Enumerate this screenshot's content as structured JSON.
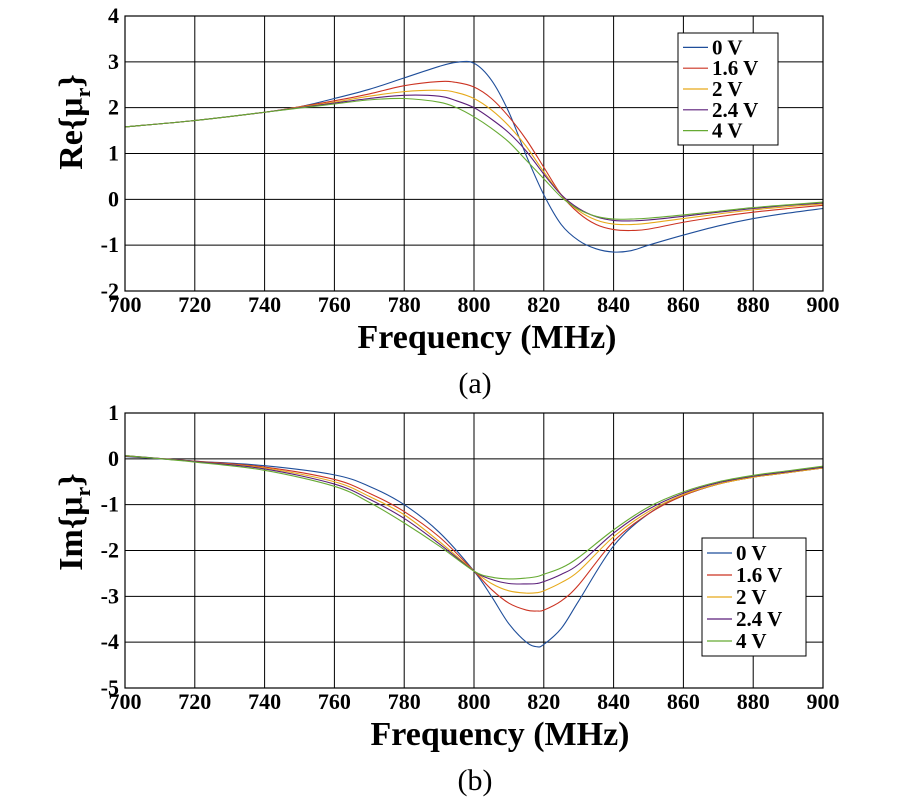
{
  "chart_data": [
    {
      "type": "line",
      "id": "a",
      "caption": "(a)",
      "xlabel": "Frequency (MHz)",
      "ylabel_main": "Re{μ",
      "ylabel_sub": "r",
      "ylabel_close": "}",
      "xlim": [
        700,
        900
      ],
      "ylim": [
        -2,
        4
      ],
      "xticks": [
        700,
        720,
        740,
        760,
        780,
        800,
        820,
        840,
        860,
        880,
        900
      ],
      "yticks": [
        -2,
        -1,
        0,
        1,
        2,
        3,
        4
      ],
      "grid": true,
      "legend_position": "top-right",
      "x": [
        700,
        720,
        740,
        750,
        760,
        770,
        780,
        790,
        795,
        800,
        805,
        810,
        815,
        820,
        825,
        830,
        835,
        840,
        845,
        850,
        860,
        870,
        880,
        890,
        900
      ],
      "series": [
        {
          "name": "0 V",
          "color": "#1f4e9a",
          "values": [
            1.58,
            1.72,
            1.9,
            2.02,
            2.2,
            2.4,
            2.65,
            2.9,
            2.99,
            2.97,
            2.6,
            1.9,
            0.95,
            0.1,
            -0.55,
            -0.9,
            -1.08,
            -1.15,
            -1.12,
            -1.0,
            -0.78,
            -0.58,
            -0.42,
            -0.3,
            -0.2
          ]
        },
        {
          "name": "1.6 V",
          "color": "#cc3322",
          "values": [
            1.58,
            1.72,
            1.9,
            2.02,
            2.15,
            2.3,
            2.48,
            2.57,
            2.55,
            2.45,
            2.2,
            1.8,
            1.3,
            0.7,
            0.1,
            -0.3,
            -0.55,
            -0.66,
            -0.68,
            -0.65,
            -0.5,
            -0.38,
            -0.28,
            -0.2,
            -0.13
          ]
        },
        {
          "name": "2 V",
          "color": "#e6a91a",
          "values": [
            1.58,
            1.72,
            1.9,
            2.01,
            2.12,
            2.25,
            2.35,
            2.38,
            2.33,
            2.2,
            1.95,
            1.6,
            1.15,
            0.6,
            0.1,
            -0.25,
            -0.45,
            -0.54,
            -0.55,
            -0.52,
            -0.42,
            -0.32,
            -0.23,
            -0.16,
            -0.1
          ]
        },
        {
          "name": "2.4 V",
          "color": "#5b1f7a",
          "values": [
            1.58,
            1.72,
            1.9,
            2.0,
            2.1,
            2.2,
            2.27,
            2.25,
            2.15,
            2.0,
            1.75,
            1.45,
            1.05,
            0.55,
            0.1,
            -0.2,
            -0.38,
            -0.46,
            -0.47,
            -0.45,
            -0.37,
            -0.28,
            -0.2,
            -0.13,
            -0.08
          ]
        },
        {
          "name": "4 V",
          "color": "#66aa33",
          "values": [
            1.58,
            1.72,
            1.9,
            1.99,
            2.08,
            2.17,
            2.2,
            2.12,
            2.0,
            1.8,
            1.55,
            1.25,
            0.85,
            0.45,
            0.05,
            -0.22,
            -0.37,
            -0.43,
            -0.43,
            -0.41,
            -0.34,
            -0.26,
            -0.18,
            -0.12,
            -0.06
          ]
        }
      ]
    },
    {
      "type": "line",
      "id": "b",
      "caption": "(b)",
      "xlabel": "Frequency (MHz)",
      "ylabel_main": "Im{μ",
      "ylabel_sub": "r",
      "ylabel_close": "}",
      "xlim": [
        700,
        900
      ],
      "ylim": [
        -5,
        1
      ],
      "xticks": [
        700,
        720,
        740,
        760,
        780,
        800,
        820,
        840,
        860,
        880,
        900
      ],
      "yticks": [
        -5,
        -4,
        -3,
        -2,
        -1,
        0,
        1
      ],
      "grid": true,
      "legend_position": "lower-right",
      "x": [
        700,
        720,
        740,
        760,
        770,
        780,
        790,
        800,
        805,
        810,
        815,
        818,
        820,
        825,
        830,
        840,
        850,
        860,
        870,
        880,
        890,
        900
      ],
      "series": [
        {
          "name": "0 V",
          "color": "#1f4e9a",
          "values": [
            0.05,
            -0.05,
            -0.15,
            -0.35,
            -0.6,
            -1.0,
            -1.6,
            -2.45,
            -3.0,
            -3.6,
            -4.0,
            -4.1,
            -4.05,
            -3.7,
            -3.1,
            -1.9,
            -1.2,
            -0.8,
            -0.55,
            -0.4,
            -0.3,
            -0.2
          ]
        },
        {
          "name": "1.6 V",
          "color": "#cc3322",
          "values": [
            0.06,
            -0.05,
            -0.18,
            -0.45,
            -0.75,
            -1.15,
            -1.7,
            -2.45,
            -2.85,
            -3.15,
            -3.3,
            -3.32,
            -3.3,
            -3.1,
            -2.75,
            -1.8,
            -1.2,
            -0.8,
            -0.55,
            -0.4,
            -0.3,
            -0.2
          ]
        },
        {
          "name": "2 V",
          "color": "#e6a91a",
          "values": [
            0.07,
            -0.06,
            -0.2,
            -0.5,
            -0.82,
            -1.22,
            -1.8,
            -2.45,
            -2.72,
            -2.88,
            -2.93,
            -2.92,
            -2.88,
            -2.7,
            -2.45,
            -1.7,
            -1.15,
            -0.78,
            -0.55,
            -0.4,
            -0.3,
            -0.2
          ]
        },
        {
          "name": "2.4 V",
          "color": "#5b1f7a",
          "values": [
            0.07,
            -0.06,
            -0.22,
            -0.55,
            -0.88,
            -1.3,
            -1.85,
            -2.45,
            -2.63,
            -2.72,
            -2.73,
            -2.72,
            -2.68,
            -2.52,
            -2.3,
            -1.62,
            -1.1,
            -0.75,
            -0.52,
            -0.38,
            -0.28,
            -0.18
          ]
        },
        {
          "name": "4 V",
          "color": "#66aa33",
          "values": [
            0.07,
            -0.07,
            -0.25,
            -0.6,
            -0.95,
            -1.4,
            -1.9,
            -2.45,
            -2.58,
            -2.62,
            -2.6,
            -2.57,
            -2.52,
            -2.38,
            -2.15,
            -1.55,
            -1.05,
            -0.72,
            -0.5,
            -0.36,
            -0.26,
            -0.16
          ]
        }
      ]
    }
  ]
}
